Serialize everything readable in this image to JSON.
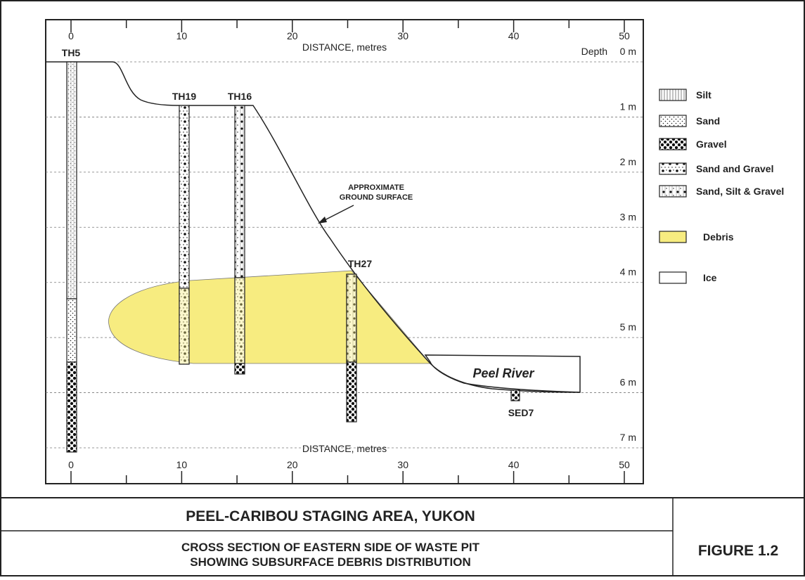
{
  "diagram": {
    "x_axis": {
      "label_top": "DISTANCE, metres",
      "label_bottom": "DISTANCE, metres",
      "ticks": [
        0,
        10,
        20,
        30,
        40,
        50
      ]
    },
    "depth_axis": {
      "title": "Depth",
      "ticks": [
        {
          "value": 0,
          "label": "0 m"
        },
        {
          "value": 1,
          "label": "1 m"
        },
        {
          "value": 2,
          "label": "2 m"
        },
        {
          "value": 3,
          "label": "3 m"
        },
        {
          "value": 4,
          "label": "4 m"
        },
        {
          "value": 5,
          "label": "5 m"
        },
        {
          "value": 6,
          "label": "6 m"
        },
        {
          "value": 7,
          "label": "7 m"
        }
      ]
    },
    "boreholes": [
      "TH5",
      "TH19",
      "TH16",
      "TH27",
      "SED7"
    ],
    "annotations": {
      "ground_surface": [
        "APPROXIMATE",
        "GROUND SURFACE"
      ],
      "river": "Peel River"
    },
    "legend": [
      "Silt",
      "Sand",
      "Gravel",
      "Sand and Gravel",
      "Sand, Silt & Gravel",
      "Debris",
      "Ice"
    ]
  },
  "title_block": {
    "title": "PEEL-CARIBOU STAGING AREA, YUKON",
    "subtitle": [
      "CROSS SECTION OF EASTERN SIDE OF WASTE PIT",
      "SHOWING SUBSURFACE DEBRIS DISTRIBUTION"
    ],
    "figure": "FIGURE 1.2"
  }
}
